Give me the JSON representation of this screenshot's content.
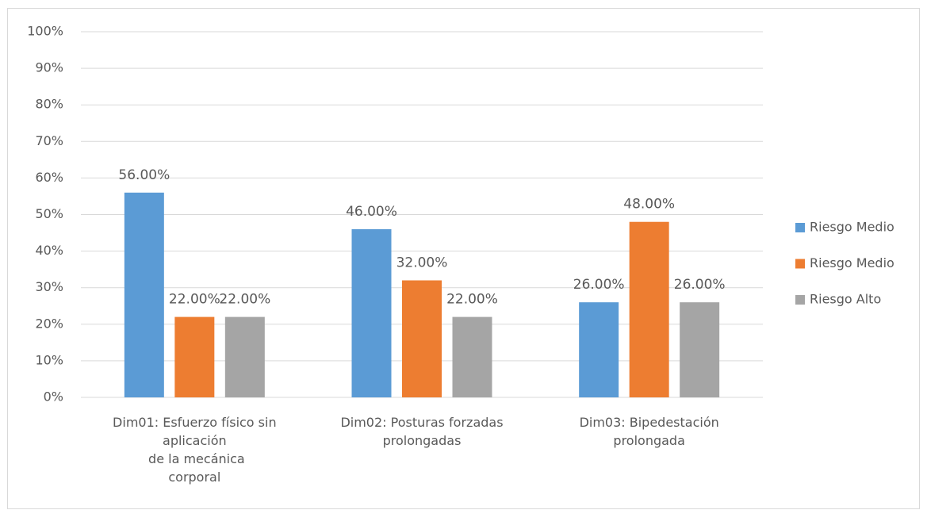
{
  "chart_data": {
    "type": "bar",
    "categories": [
      "Dim01: Esfuerzo físico sin\naplicación\n de la mecánica\ncorporal",
      "Dim02: Posturas forzadas\nprolongadas",
      "Dim03: Bipedestación\nprolongada"
    ],
    "series": [
      {
        "name": "Riesgo Medio",
        "color": "#5b9bd5",
        "values": [
          56,
          46,
          26
        ],
        "value_labels": [
          "56.00%",
          "46.00%",
          "26.00%"
        ]
      },
      {
        "name": "Riesgo Medio",
        "color": "#ed7d31",
        "values": [
          22,
          32,
          48
        ],
        "value_labels": [
          "22.00%",
          "32.00%",
          "48.00%"
        ]
      },
      {
        "name": "Riesgo Alto",
        "color": "#a5a5a5",
        "values": [
          22,
          22,
          26
        ],
        "value_labels": [
          "22.00%",
          "22.00%",
          "26.00%"
        ]
      }
    ],
    "ylim": [
      0,
      100
    ],
    "yticks": [
      {
        "value": 0,
        "label": "0%"
      },
      {
        "value": 10,
        "label": "10%"
      },
      {
        "value": 20,
        "label": "20%"
      },
      {
        "value": 30,
        "label": "30%"
      },
      {
        "value": 40,
        "label": "40%"
      },
      {
        "value": 50,
        "label": "50%"
      },
      {
        "value": 60,
        "label": "60%"
      },
      {
        "value": 70,
        "label": "70%"
      },
      {
        "value": 80,
        "label": "80%"
      },
      {
        "value": 90,
        "label": "90%"
      },
      {
        "value": 100,
        "label": "100%"
      }
    ],
    "grid": true,
    "legend": "right"
  }
}
